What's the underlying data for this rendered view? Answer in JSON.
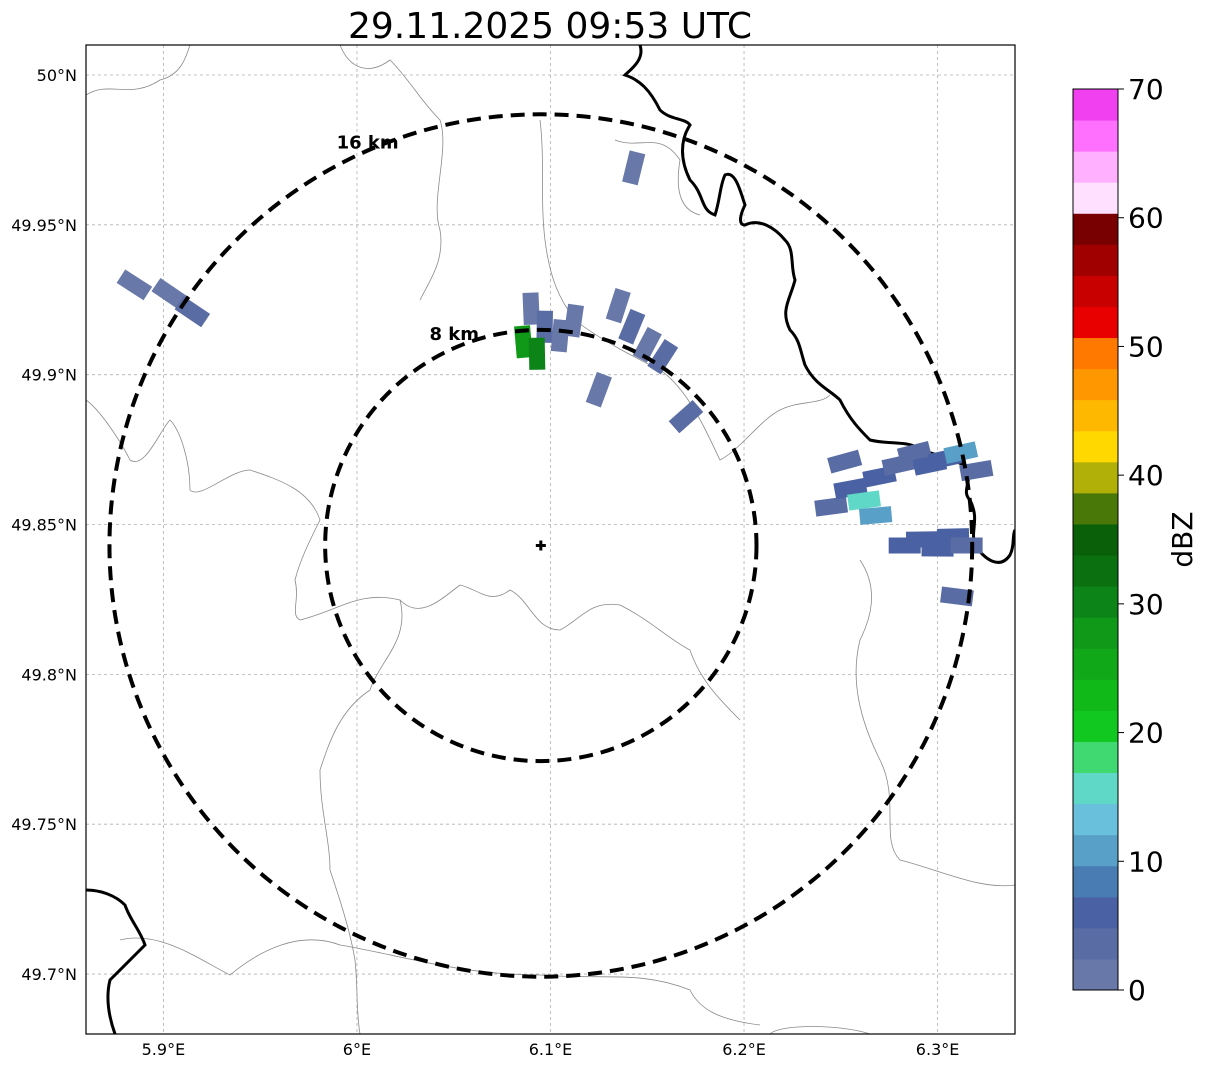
{
  "title": "29.11.2025 09:53 UTC",
  "map": {
    "lon_ticks": [
      {
        "value": 5.9,
        "label": "5.9°E"
      },
      {
        "value": 6.0,
        "label": "6°E"
      },
      {
        "value": 6.1,
        "label": "6.1°E"
      },
      {
        "value": 6.2,
        "label": "6.2°E"
      },
      {
        "value": 6.3,
        "label": "6.3°E"
      }
    ],
    "lat_ticks": [
      {
        "value": 50.0,
        "label": "50°N"
      },
      {
        "value": 49.95,
        "label": "49.95°N"
      },
      {
        "value": 49.9,
        "label": "49.9°N"
      },
      {
        "value": 49.85,
        "label": "49.85°N"
      },
      {
        "value": 49.8,
        "label": "49.8°N"
      },
      {
        "value": 49.75,
        "label": "49.75°N"
      },
      {
        "value": 49.7,
        "label": "49.7°N"
      }
    ],
    "extent": {
      "lon": [
        5.86,
        6.34
      ],
      "lat": [
        49.68,
        50.01
      ]
    },
    "radar_site": {
      "lon": 6.095,
      "lat": 49.843
    },
    "range_rings": [
      {
        "radius_km": 8,
        "label": "8 km"
      },
      {
        "radius_km": 16,
        "label": "16 km"
      }
    ]
  },
  "colorbar": {
    "label": "dBZ",
    "ticks": [
      "0",
      "10",
      "20",
      "30",
      "40",
      "50",
      "60",
      "70"
    ],
    "min": 0,
    "max": 70,
    "colors": [
      "#6878a8",
      "#5a6ca4",
      "#4a62a4",
      "#4a7cb4",
      "#58a0c8",
      "#68c0dc",
      "#60d8c8",
      "#40d870",
      "#10c820",
      "#10b818",
      "#10a818",
      "#109818",
      "#0c8418",
      "#0a7010",
      "#0a6008",
      "#4a7808",
      "#b0b008",
      "#ffd800",
      "#ffb800",
      "#ff9800",
      "#ff7800",
      "#e80000",
      "#c80000",
      "#a00000",
      "#780000",
      "#ffe0ff",
      "#ffb0ff",
      "#ff70ff",
      "#f040f0"
    ]
  },
  "echoes": [
    {
      "lon": 6.143,
      "lat": 49.969,
      "dbz": 2
    },
    {
      "lon": 5.885,
      "lat": 49.93,
      "dbz": 2
    },
    {
      "lon": 5.903,
      "lat": 49.927,
      "dbz": 2
    },
    {
      "lon": 5.915,
      "lat": 49.921,
      "dbz": 3
    },
    {
      "lon": 6.09,
      "lat": 49.922,
      "dbz": 2
    },
    {
      "lon": 6.097,
      "lat": 49.916,
      "dbz": 3
    },
    {
      "lon": 6.105,
      "lat": 49.913,
      "dbz": 2
    },
    {
      "lon": 6.112,
      "lat": 49.918,
      "dbz": 2
    },
    {
      "lon": 6.086,
      "lat": 49.911,
      "dbz": 28
    },
    {
      "lon": 6.093,
      "lat": 49.907,
      "dbz": 30
    },
    {
      "lon": 6.135,
      "lat": 49.923,
      "dbz": 2
    },
    {
      "lon": 6.142,
      "lat": 49.916,
      "dbz": 3
    },
    {
      "lon": 6.15,
      "lat": 49.91,
      "dbz": 2
    },
    {
      "lon": 6.158,
      "lat": 49.906,
      "dbz": 3
    },
    {
      "lon": 6.125,
      "lat": 49.895,
      "dbz": 2
    },
    {
      "lon": 6.17,
      "lat": 49.886,
      "dbz": 3
    },
    {
      "lon": 6.245,
      "lat": 49.856,
      "dbz": 3
    },
    {
      "lon": 6.255,
      "lat": 49.862,
      "dbz": 5
    },
    {
      "lon": 6.262,
      "lat": 49.858,
      "dbz": 15
    },
    {
      "lon": 6.268,
      "lat": 49.853,
      "dbz": 12
    },
    {
      "lon": 6.27,
      "lat": 49.866,
      "dbz": 6
    },
    {
      "lon": 6.28,
      "lat": 49.87,
      "dbz": 4
    },
    {
      "lon": 6.288,
      "lat": 49.874,
      "dbz": 3
    },
    {
      "lon": 6.296,
      "lat": 49.87,
      "dbz": 5
    },
    {
      "lon": 6.304,
      "lat": 49.872,
      "dbz": 6
    },
    {
      "lon": 6.312,
      "lat": 49.874,
      "dbz": 10
    },
    {
      "lon": 6.32,
      "lat": 49.868,
      "dbz": 4
    },
    {
      "lon": 6.252,
      "lat": 49.871,
      "dbz": 3
    },
    {
      "lon": 6.283,
      "lat": 49.843,
      "dbz": 5
    },
    {
      "lon": 6.292,
      "lat": 49.845,
      "dbz": 6
    },
    {
      "lon": 6.3,
      "lat": 49.842,
      "dbz": 5
    },
    {
      "lon": 6.308,
      "lat": 49.846,
      "dbz": 7
    },
    {
      "lon": 6.315,
      "lat": 49.843,
      "dbz": 4
    },
    {
      "lon": 6.31,
      "lat": 49.826,
      "dbz": 4
    }
  ]
}
